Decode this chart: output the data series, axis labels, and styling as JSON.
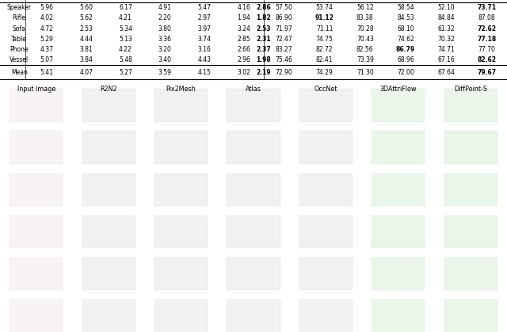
{
  "row_labels": [
    "Speaker",
    "Rifle",
    "Sofa",
    "Table",
    "Phone",
    "Vessel",
    "Mean"
  ],
  "left_data": {
    "Speaker": [
      5.96,
      5.6,
      6.17,
      4.91,
      5.47,
      4.16
    ],
    "Rifle": [
      4.02,
      5.62,
      4.21,
      2.2,
      2.97,
      1.94
    ],
    "Sofa": [
      4.72,
      2.53,
      5.34,
      3.8,
      3.97,
      3.24
    ],
    "Table": [
      5.29,
      4.44,
      5.13,
      3.36,
      3.74,
      2.85
    ],
    "Phone": [
      4.37,
      3.81,
      4.22,
      3.2,
      3.16,
      2.66
    ],
    "Vessel": [
      5.07,
      3.84,
      5.48,
      3.4,
      4.43,
      2.96
    ],
    "Mean": [
      5.41,
      4.07,
      5.27,
      3.59,
      4.15,
      3.02
    ]
  },
  "left_diffpoint": {
    "Speaker": "2.86",
    "Rifle": "1.82",
    "Sofa": "2.53",
    "Table": "2.31",
    "Phone": "2.37",
    "Vessel": "1.98",
    "Mean": "2.19"
  },
  "right_data": {
    "Speaker": [
      57.5,
      53.74,
      56.12,
      58.54,
      52.1
    ],
    "Rifle": [
      86.9,
      91.12,
      83.38,
      84.53,
      84.84
    ],
    "Sofa": [
      71.97,
      71.11,
      70.28,
      68.1,
      61.32
    ],
    "Table": [
      72.47,
      74.75,
      70.43,
      74.62,
      70.32
    ],
    "Phone": [
      83.27,
      82.72,
      82.56,
      86.79,
      74.71
    ],
    "Vessel": [
      75.46,
      82.41,
      73.39,
      68.96,
      67.16
    ],
    "Mean": [
      72.9,
      74.29,
      71.3,
      72.0,
      67.64
    ]
  },
  "right_bold": {
    "Speaker": [
      false,
      false,
      false,
      false,
      false
    ],
    "Rifle": [
      false,
      true,
      false,
      false,
      false
    ],
    "Sofa": [
      false,
      false,
      false,
      false,
      false
    ],
    "Table": [
      false,
      false,
      false,
      false,
      false
    ],
    "Phone": [
      false,
      false,
      false,
      true,
      false
    ],
    "Vessel": [
      false,
      false,
      false,
      false,
      false
    ],
    "Mean": [
      false,
      false,
      false,
      false,
      false
    ]
  },
  "right_diffpoint": {
    "Speaker": "73.71",
    "Rifle": "87.08",
    "Sofa": "72.62",
    "Table": "77.18",
    "Phone": "77.70",
    "Vessel": "82.62",
    "Mean": "79.67"
  },
  "right_dp_bold": {
    "Speaker": true,
    "Rifle": false,
    "Sofa": true,
    "Table": true,
    "Phone": false,
    "Vessel": true,
    "Mean": true
  },
  "col_image_headers": [
    "Input Image",
    "R2N2",
    "Pix2Mesh",
    "Atlas",
    "OccNet",
    "3DAttriFlow",
    "DiffPoint-S"
  ],
  "background_color": "#ffffff",
  "fontsize_table": 5.5,
  "fontsize_header": 5.8
}
